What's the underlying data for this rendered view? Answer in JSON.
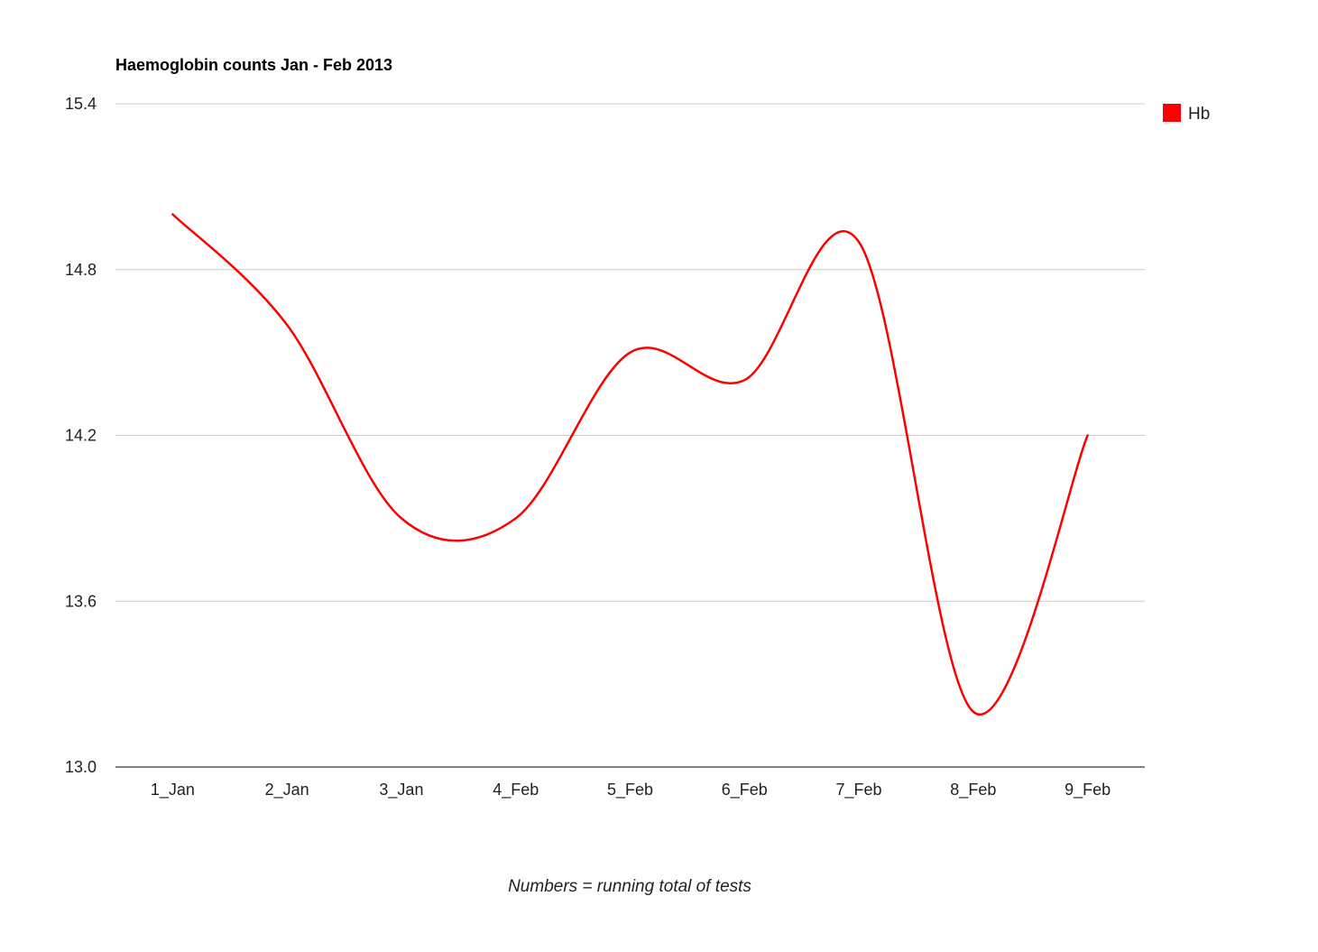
{
  "chart_data": {
    "type": "line",
    "title": "Haemoglobin counts Jan - Feb 2013",
    "xlabel": "Numbers = running total of tests",
    "ylabel": "",
    "categories": [
      "1_Jan",
      "2_Jan",
      "3_Jan",
      "4_Feb",
      "5_Feb",
      "6_Feb",
      "7_Feb",
      "8_Feb",
      "9_Feb"
    ],
    "series": [
      {
        "name": "Hb",
        "color": "#ff0000",
        "values": [
          15.0,
          14.6,
          13.9,
          13.9,
          14.5,
          14.4,
          14.9,
          13.2,
          14.2
        ]
      }
    ],
    "ylim": [
      13.0,
      15.4
    ],
    "yticks": [
      "15.4",
      "14.8",
      "14.2",
      "13.6",
      "13.0"
    ],
    "ytick_values": [
      15.4,
      14.8,
      14.2,
      13.6,
      13.0
    ],
    "grid": true,
    "smooth": true,
    "legend_position": "right"
  }
}
